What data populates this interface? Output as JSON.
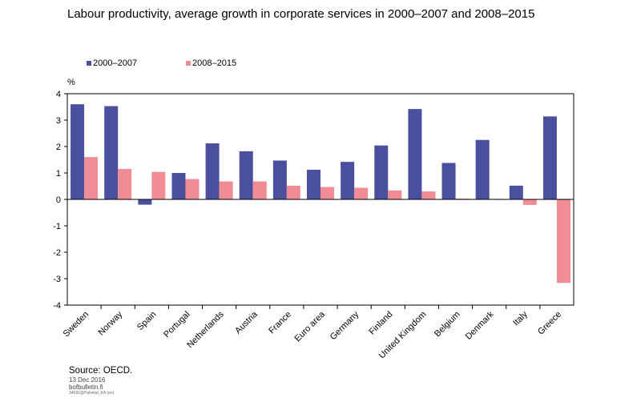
{
  "chart_data": {
    "type": "bar",
    "title": "Labour productivity, average growth in corporate services in 2000–2007 and 2008–2015",
    "ylabel": "%",
    "ylim": [
      -4,
      4
    ],
    "yticks": [
      "4",
      "3",
      "2",
      "1",
      "0",
      "-1",
      "-2",
      "-3",
      "-4"
    ],
    "categories": [
      "Sweden",
      "Norway",
      "Spain",
      "Portugal",
      "Netherlands",
      "Austria",
      "France",
      "Euro area",
      "Germany",
      "Finland",
      "United Kingdom",
      "Belgium",
      "Denmark",
      "Italy",
      "Greece"
    ],
    "series": [
      {
        "name": "2000–2007",
        "color": "#4a4f9e",
        "values": [
          3.6,
          3.53,
          -0.2,
          1.0,
          2.12,
          1.82,
          1.47,
          1.12,
          1.42,
          2.04,
          3.42,
          1.38,
          2.25,
          0.52,
          3.14
        ]
      },
      {
        "name": "2008–2015",
        "color": "#f08c94",
        "values": [
          1.6,
          1.15,
          1.04,
          0.77,
          0.68,
          0.68,
          0.52,
          0.47,
          0.44,
          0.34,
          0.3,
          0.03,
          0.02,
          -0.21,
          -3.16
        ]
      }
    ],
    "legend_position": "top-left",
    "grid": false
  },
  "footer": {
    "source": "Source: OECD.",
    "date": "13 Dec 2016",
    "site": "bofbulletin.fi",
    "code": "34692@Palvelut_KA   (en)"
  }
}
